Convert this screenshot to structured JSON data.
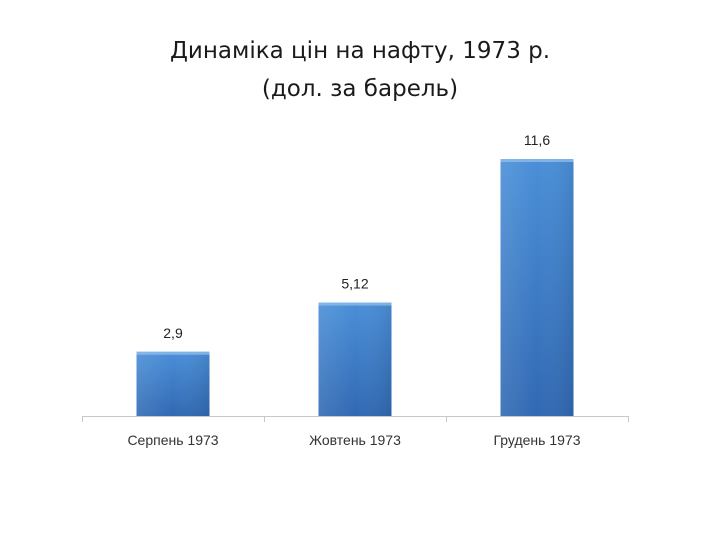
{
  "slide": {
    "title_line1": "Динаміка цін на нафту, 1973 р.",
    "title_line2": "(дол. за барель)"
  },
  "chart_data": {
    "type": "bar",
    "categories": [
      "Серпень 1973",
      "Жовтень 1973",
      "Грудень 1973"
    ],
    "values": [
      2.9,
      5.12,
      11.6
    ],
    "data_labels": [
      "2,9",
      "5,12",
      "11,6"
    ],
    "ylim": [
      0,
      13
    ],
    "grid": false,
    "legend": "none",
    "bar_color_top": "#4a8fd8",
    "bar_color_bottom": "#3169b3",
    "axis_color": "#c8c8c8"
  }
}
